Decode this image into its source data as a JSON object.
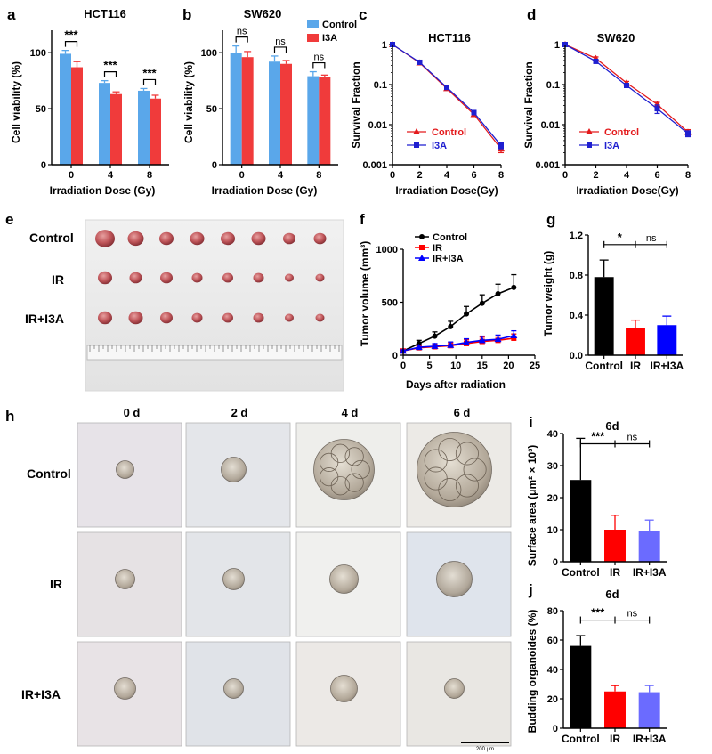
{
  "panels": {
    "a": {
      "label": "a",
      "title": "HCT116",
      "xlabel": "Irradiation Dose (Gy)",
      "ylabel": "Cell viability (%)"
    },
    "b": {
      "label": "b",
      "title": "SW620",
      "xlabel": "Irradiation Dose (Gy)",
      "ylabel": "Cell viability (%)"
    },
    "c": {
      "label": "c",
      "title": "HCT116",
      "xlabel": "Irradiation Dose(Gy)",
      "ylabel": "Survival Fraction"
    },
    "d": {
      "label": "d",
      "title": "SW620",
      "xlabel": "Irradiation Dose(Gy)",
      "ylabel": "Survival Fraction"
    },
    "e": {
      "label": "e",
      "rows": [
        "Control",
        "IR",
        "IR+I3A"
      ]
    },
    "f": {
      "label": "f",
      "xlabel": "Days after radiation",
      "ylabel": "Tumor volume (mm³)"
    },
    "g": {
      "label": "g",
      "ylabel": "Tumor weight (g)"
    },
    "h": {
      "label": "h",
      "columns": [
        "0 d",
        "2 d",
        "4 d",
        "6 d"
      ],
      "rows": [
        "Control",
        "IR",
        "IR+I3A"
      ],
      "scalebar": "200 μm"
    },
    "i": {
      "label": "i",
      "title": "6d",
      "ylabel": "Surface area (μm² × 10³)"
    },
    "j": {
      "label": "j",
      "title": "6d",
      "ylabel": "Budding organoides (%)"
    }
  },
  "colors": {
    "control_light": "#5aa7ea",
    "i3a_red": "#f03b3b",
    "control_dark": "#e31a1c",
    "i3a_blue": "#1f1fd0",
    "black": "#000000",
    "red": "#ff0000",
    "blue": "#0000ff",
    "light_blue": "#6b6bff"
  },
  "chart_data": [
    {
      "id": "a",
      "type": "bar",
      "title": "HCT116",
      "categories": [
        "0",
        "4",
        "8"
      ],
      "series": [
        {
          "name": "Control",
          "values": [
            99,
            73,
            66
          ],
          "errors": [
            3,
            2,
            2
          ],
          "color": "#5aa7ea"
        },
        {
          "name": "I3A",
          "values": [
            87,
            63,
            59
          ],
          "errors": [
            5,
            2,
            3
          ],
          "color": "#f03b3b"
        }
      ],
      "ylim": [
        0,
        120
      ],
      "yticks": [
        0,
        50,
        100
      ],
      "xlabel": "Irradiation Dose (Gy)",
      "ylabel": "Cell viability (%)",
      "significance": [
        "***",
        "***",
        "***"
      ]
    },
    {
      "id": "b",
      "type": "bar",
      "title": "SW620",
      "categories": [
        "0",
        "4",
        "8"
      ],
      "series": [
        {
          "name": "Control",
          "values": [
            100,
            92,
            79
          ],
          "errors": [
            6,
            5,
            4
          ],
          "color": "#5aa7ea"
        },
        {
          "name": "I3A",
          "values": [
            96,
            90,
            78
          ],
          "errors": [
            5,
            3,
            2
          ],
          "color": "#f03b3b"
        }
      ],
      "ylim": [
        0,
        120
      ],
      "yticks": [
        0,
        50,
        100
      ],
      "xlabel": "Irradiation Dose (Gy)",
      "ylabel": "Cell viability (%)",
      "significance": [
        "ns",
        "ns",
        "ns"
      ],
      "legend": "top-right"
    },
    {
      "id": "c",
      "type": "line",
      "title": "HCT116",
      "yscale": "log",
      "x": [
        0,
        2,
        4,
        6,
        8
      ],
      "series": [
        {
          "name": "Control",
          "values": [
            1,
            0.35,
            0.08,
            0.018,
            0.0025
          ],
          "errors": [
            0,
            0.02,
            0.005,
            0.002,
            0.0005
          ],
          "color": "#e31a1c",
          "marker": "triangle"
        },
        {
          "name": "I3A",
          "values": [
            1,
            0.36,
            0.085,
            0.02,
            0.003
          ],
          "errors": [
            0,
            0.02,
            0.005,
            0.002,
            0.0005
          ],
          "color": "#1f1fd0",
          "marker": "square"
        }
      ],
      "xlim": [
        0,
        8
      ],
      "ylim": [
        0.001,
        1
      ],
      "xticks": [
        0,
        2,
        4,
        6,
        8
      ],
      "ytick_labels": [
        "1",
        "0.1",
        "0.01",
        "0.001"
      ],
      "xlabel": "Irradiation Dose(Gy)",
      "ylabel": "Survival Fraction",
      "legend": "bottom-left"
    },
    {
      "id": "d",
      "type": "line",
      "title": "SW620",
      "yscale": "log",
      "x": [
        0,
        2,
        4,
        6,
        8
      ],
      "series": [
        {
          "name": "Control",
          "values": [
            1,
            0.45,
            0.11,
            0.032,
            0.0065
          ],
          "errors": [
            0,
            0.04,
            0.01,
            0.004,
            0.001
          ],
          "color": "#e31a1c",
          "marker": "triangle"
        },
        {
          "name": "I3A",
          "values": [
            1,
            0.38,
            0.095,
            0.025,
            0.006
          ],
          "errors": [
            0,
            0.04,
            0.01,
            0.006,
            0.001
          ],
          "color": "#1f1fd0",
          "marker": "square"
        }
      ],
      "xlim": [
        0,
        8
      ],
      "ylim": [
        0.001,
        1
      ],
      "xticks": [
        0,
        2,
        4,
        6,
        8
      ],
      "ytick_labels": [
        "1",
        "0.1",
        "0.01",
        "0.001"
      ],
      "xlabel": "Irradiation Dose(Gy)",
      "ylabel": "Survival Fraction",
      "legend": "bottom-left"
    },
    {
      "id": "f",
      "type": "line",
      "x": [
        0,
        3,
        6,
        9,
        12,
        15,
        18,
        21
      ],
      "series": [
        {
          "name": "Control",
          "values": [
            40,
            110,
            180,
            270,
            390,
            490,
            580,
            640
          ],
          "errors": [
            10,
            30,
            40,
            50,
            70,
            80,
            90,
            120
          ],
          "color": "#000000",
          "marker": "circle"
        },
        {
          "name": "IR",
          "values": [
            40,
            70,
            80,
            90,
            110,
            130,
            140,
            160
          ],
          "errors": [
            10,
            20,
            25,
            30,
            35,
            40,
            40,
            40
          ],
          "color": "#ff0000",
          "marker": "square"
        },
        {
          "name": "IR+I3A",
          "values": [
            40,
            75,
            85,
            95,
            120,
            140,
            150,
            185
          ],
          "errors": [
            10,
            20,
            25,
            30,
            35,
            40,
            40,
            45
          ],
          "color": "#0000ff",
          "marker": "triangle"
        }
      ],
      "xlim": [
        0,
        25
      ],
      "ylim": [
        0,
        1000
      ],
      "xticks": [
        0,
        5,
        10,
        15,
        20,
        25
      ],
      "yticks": [
        0,
        500,
        1000
      ],
      "xlabel": "Days after radiation",
      "ylabel": "Tumor volume (mm³)",
      "legend": "top-left"
    },
    {
      "id": "g",
      "type": "bar",
      "categories": [
        "Control",
        "IR",
        "IR+I3A"
      ],
      "values": [
        0.78,
        0.27,
        0.3
      ],
      "errors": [
        0.17,
        0.08,
        0.09
      ],
      "colors": [
        "#000000",
        "#ff0000",
        "#0000ff"
      ],
      "ylim": [
        0,
        1.2
      ],
      "yticks": [
        0,
        0.4,
        0.8,
        1.2
      ],
      "ytick_labels": [
        "0.0",
        "0.4",
        "0.8",
        "1.2"
      ],
      "ylabel": "Tumor weight (g)",
      "significance": [
        "*",
        "ns"
      ]
    },
    {
      "id": "i",
      "type": "bar",
      "title": "6d",
      "categories": [
        "Control",
        "IR",
        "IR+I3A"
      ],
      "values": [
        25.5,
        10,
        9.5
      ],
      "errors": [
        13,
        4.5,
        3.5
      ],
      "colors": [
        "#000000",
        "#ff0000",
        "#6b6bff"
      ],
      "ylim": [
        0,
        40
      ],
      "yticks": [
        0,
        10,
        20,
        30,
        40
      ],
      "ylabel": "Surface area (μm² × 10³)",
      "significance": [
        "***",
        "ns"
      ]
    },
    {
      "id": "j",
      "type": "bar",
      "title": "6d",
      "categories": [
        "Control",
        "IR",
        "IR+I3A"
      ],
      "values": [
        56,
        25,
        24.5
      ],
      "errors": [
        7,
        4,
        4.5
      ],
      "colors": [
        "#000000",
        "#ff0000",
        "#6b6bff"
      ],
      "ylim": [
        0,
        80
      ],
      "yticks": [
        0,
        20,
        40,
        60,
        80
      ],
      "ylabel": "Budding organoides (%)",
      "significance": [
        "***",
        "ns"
      ]
    }
  ]
}
